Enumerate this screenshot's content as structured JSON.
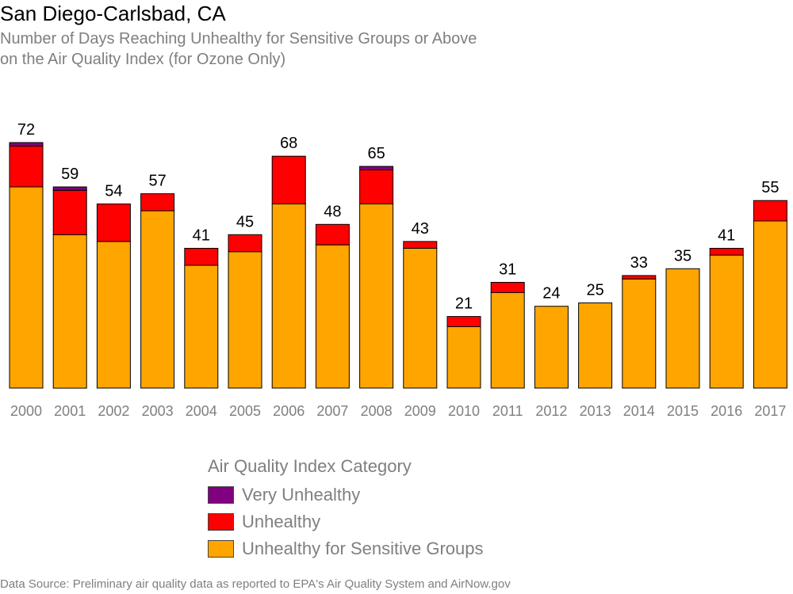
{
  "header": {
    "title": "San Diego-Carlsbad, CA",
    "subtitle_line1": "Number of Days Reaching Unhealthy for Sensitive Groups or Above",
    "subtitle_line2": "on the Air Quality Index (for Ozone Only)"
  },
  "chart_data": {
    "type": "bar",
    "stacked": true,
    "title": "San Diego-Carlsbad, CA",
    "subtitle": "Number of Days Reaching Unhealthy for Sensitive Groups or Above on the Air Quality Index (for Ozone Only)",
    "categories": [
      "2000",
      "2001",
      "2002",
      "2003",
      "2004",
      "2005",
      "2006",
      "2007",
      "2008",
      "2009",
      "2010",
      "2011",
      "2012",
      "2013",
      "2014",
      "2015",
      "2016",
      "2017"
    ],
    "totals": [
      72,
      59,
      54,
      57,
      41,
      45,
      68,
      48,
      65,
      43,
      21,
      31,
      24,
      25,
      33,
      35,
      41,
      55
    ],
    "series": [
      {
        "name": "Unhealthy for Sensitive Groups",
        "color": "#FFA500",
        "values": [
          59,
          45,
          43,
          52,
          36,
          40,
          54,
          42,
          54,
          41,
          18,
          28,
          24,
          25,
          32,
          35,
          39,
          49
        ]
      },
      {
        "name": "Unhealthy",
        "color": "#FF0000",
        "values": [
          12,
          13,
          11,
          5,
          5,
          5,
          14,
          6,
          10,
          2,
          3,
          3,
          0,
          0,
          1,
          0,
          2,
          6
        ]
      },
      {
        "name": "Very Unhealthy",
        "color": "#800080",
        "values": [
          1,
          1,
          0,
          0,
          0,
          0,
          0,
          0,
          1,
          0,
          0,
          0,
          0,
          0,
          0,
          0,
          0,
          0
        ]
      }
    ],
    "ylim": [
      0,
      72
    ],
    "grid": false,
    "legend_position": "bottom"
  },
  "legend": {
    "title": "Air Quality Index Category",
    "items": [
      {
        "label": "Very Unhealthy",
        "color": "#800080"
      },
      {
        "label": "Unhealthy",
        "color": "#FF0000"
      },
      {
        "label": "Unhealthy for Sensitive Groups",
        "color": "#FFA500"
      }
    ]
  },
  "footer": {
    "source": "Data Source: Preliminary air quality data as reported to EPA's Air Quality System and AirNow.gov"
  }
}
